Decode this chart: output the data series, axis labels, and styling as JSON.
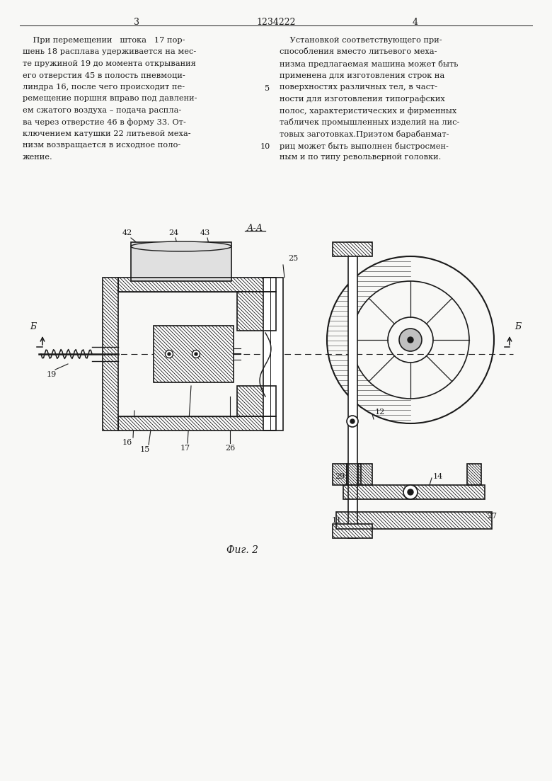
{
  "page_num_left": "3",
  "page_num_center": "1234222",
  "page_num_right": "4",
  "col1_lines": [
    "    При перемещении   штока   17 пор-",
    "шень 18 расплава удерживается на мес-",
    "те пружиной 19 до момента открывания",
    "его отверстия 45 в полость пневмоци-",
    "линдра 16, после чего происходит пе-",
    "ремещение поршня вправо под давлени-",
    "ем сжатого воздуха – подача распла-",
    "ва через отверстие 46 в форму 33. От-",
    "ключением катушки 22 литьевой меха-",
    "низм возвращается в исходное поло-",
    "жение."
  ],
  "col2_lines": [
    "    Установкой соответствующего при-",
    "способления вместо литьевого меха-",
    "низма предлагаемая машина может быть",
    "применена для изготовления строк на",
    "поверхностях различных тел, в част-",
    "ности для изготовления типографских",
    "полос, характеристических и фирменных",
    "табличек промышленных изделий на лис-",
    "товых заготовках.Приэтом барабанмат-",
    "риц может быть выполнен быстросмен-",
    "ным и по типу револьверной головки."
  ],
  "line_num_5_row": 4,
  "line_num_10_row": 9,
  "fig_caption": "Фиг. 2",
  "section_mark": "А-А",
  "bg_color": "#ffffff",
  "fg_color": "#1a1a1a",
  "paper_color": "#f8f8f6"
}
